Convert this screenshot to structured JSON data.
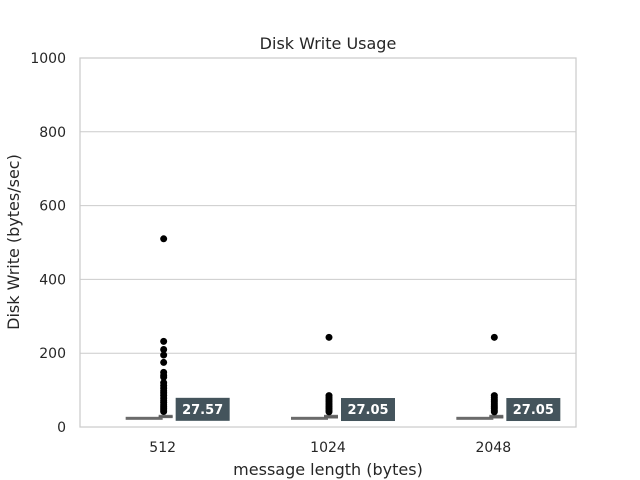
{
  "chart_data": {
    "type": "box",
    "title": "Disk Write Usage",
    "xlabel": "message length (bytes)",
    "ylabel": "Disk Write (bytes/sec)",
    "ylim": [
      0,
      1000
    ],
    "yticks": [
      0,
      200,
      400,
      600,
      800,
      1000
    ],
    "grid": true,
    "categories": [
      "512",
      "1024",
      "2048"
    ],
    "boxes": [
      {
        "category": "512",
        "q1": 24,
        "median": 27.57,
        "q3": 33,
        "median_label": "27.57",
        "outliers": [
          510,
          232,
          210,
          195,
          175,
          148,
          140,
          135,
          120,
          112,
          105,
          98,
          92,
          85,
          78,
          72,
          66,
          60,
          55,
          50,
          46,
          42
        ]
      },
      {
        "category": "1024",
        "q1": 23,
        "median": 27.05,
        "q3": 33,
        "median_label": "27.05",
        "outliers": [
          243,
          85,
          80,
          75,
          70,
          65,
          60,
          55,
          50,
          45,
          41
        ]
      },
      {
        "category": "2048",
        "q1": 23,
        "median": 27.05,
        "q3": 33,
        "median_label": "27.05",
        "outliers": [
          243,
          85,
          80,
          75,
          70,
          65,
          60,
          55,
          50,
          45,
          41
        ]
      }
    ],
    "colors": {
      "box": "#6b6b6b",
      "outlier": "#000000",
      "label_bg": "#44545c",
      "grid": "#cccccc"
    }
  }
}
